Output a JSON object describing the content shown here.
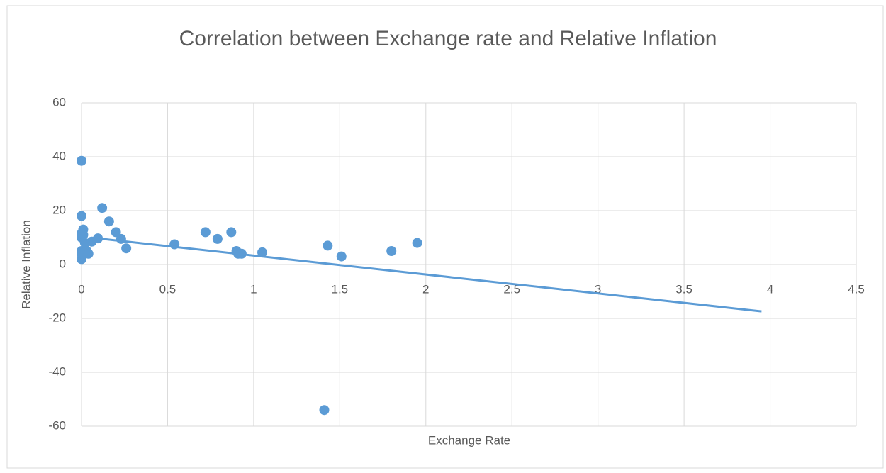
{
  "chart_data": {
    "type": "scatter",
    "title": "Correlation between Exchange rate and Relative Inflation",
    "x_label": "Exchange Rate",
    "y_label": "Relative Inflation",
    "series": [
      {
        "name": "Relative Inflation",
        "color": "#5b9bd5",
        "x": [
          0,
          0,
          0.01,
          0.01,
          0,
          0,
          0,
          0,
          0,
          0.02,
          0.03,
          0.04,
          0.12,
          0.16,
          0.2,
          0.23,
          0.26,
          0.06,
          0.095,
          0.54,
          0.72,
          0.79,
          0.87,
          0.9,
          0.91,
          0.93,
          1.05,
          1.41,
          1.43,
          1.51,
          1.8,
          1.95
        ],
        "values": [
          38.5,
          18,
          13,
          11,
          10,
          11.5,
          5,
          2,
          4,
          8,
          5,
          4,
          21,
          16,
          12,
          9.5,
          6,
          8.5,
          9.7,
          7.5,
          12,
          9.5,
          12,
          5,
          4,
          4,
          4.5,
          -54,
          7,
          3,
          5,
          8
        ]
      }
    ],
    "trendline": {
      "color": "#5b9bd5",
      "x": [
        0.12,
        3.95
      ],
      "values": [
        9.5,
        -17.4
      ]
    },
    "xlim": [
      0,
      4.5
    ],
    "xticks": [
      0,
      0.5,
      1,
      1.5,
      2,
      2.5,
      3,
      3.5,
      4,
      4.5
    ],
    "ylim": [
      -60,
      60
    ],
    "yticks": [
      -60,
      -40,
      -20,
      0,
      20,
      40,
      60
    ],
    "grid": true
  }
}
